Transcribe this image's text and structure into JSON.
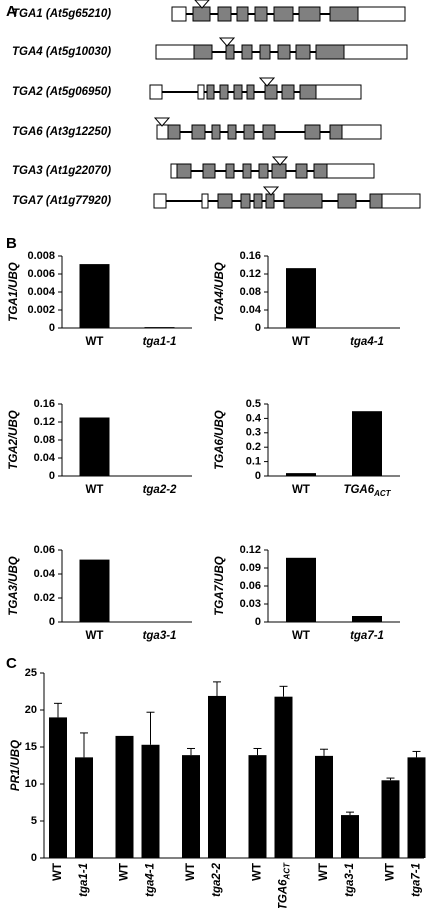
{
  "panel_labels": [
    "A",
    "B",
    "C"
  ],
  "gene_models": [
    {
      "label": "TGA1 (At5g65210)"
    },
    {
      "label": "TGA4 (At5g10030)"
    },
    {
      "label": "TGA2 (At5g06950)"
    },
    {
      "label": "TGA6 (At3g12250)"
    },
    {
      "label": "TGA3 (At1g22070)"
    },
    {
      "label": "TGA7 (At1g77920)"
    }
  ],
  "chart_data": [
    {
      "type": "bar",
      "y_label": "TGA1/UBQ",
      "categories": [
        "WT",
        "tga1-1"
      ],
      "values": [
        0.0071,
        0.0001
      ],
      "color": "#000000",
      "ylim": [
        0,
        0.008
      ],
      "yticks": [
        0,
        0.002,
        0.004,
        0.006,
        0.008
      ]
    },
    {
      "type": "bar",
      "y_label": "TGA4/UBQ",
      "categories": [
        "WT",
        "tga4-1"
      ],
      "values": [
        0.133,
        0
      ],
      "color": "#000000",
      "ylim": [
        0,
        0.16
      ],
      "yticks": [
        0,
        0.04,
        0.08,
        0.12,
        0.16
      ]
    },
    {
      "type": "bar",
      "y_label": "TGA2/UBQ",
      "categories": [
        "WT",
        "tga2-2"
      ],
      "values": [
        0.13,
        0
      ],
      "color": "#000000",
      "ylim": [
        0,
        0.16
      ],
      "yticks": [
        0,
        0.04,
        0.08,
        0.12,
        0.16
      ]
    },
    {
      "type": "bar",
      "y_label": "TGA6/UBQ",
      "categories": [
        "WT",
        "TGA6ACT"
      ],
      "values": [
        0.02,
        0.45
      ],
      "color": "#000000",
      "ylim": [
        0,
        0.5
      ],
      "yticks": [
        0,
        0.1,
        0.2,
        0.3,
        0.4,
        0.5
      ]
    },
    {
      "type": "bar",
      "y_label": "TGA3/UBQ",
      "categories": [
        "WT",
        "tga3-1"
      ],
      "values": [
        0.052,
        0
      ],
      "color": "#000000",
      "ylim": [
        0,
        0.06
      ],
      "yticks": [
        0,
        0.02,
        0.04,
        0.06
      ]
    },
    {
      "type": "bar",
      "y_label": "TGA7/UBQ",
      "categories": [
        "WT",
        "tga7-1"
      ],
      "values": [
        0.107,
        0.01
      ],
      "color": "#000000",
      "ylim": [
        0,
        0.12
      ],
      "yticks": [
        0,
        0.03,
        0.06,
        0.09,
        0.12
      ]
    },
    {
      "type": "bar",
      "y_label": "PR1/UBQ",
      "categories": [
        "WT",
        "tga1-1",
        "WT",
        "tga4-1",
        "WT",
        "tga2-2",
        "WT",
        "TGA6ACT",
        "WT",
        "tga3-1",
        "WT",
        "tga7-1"
      ],
      "values": [
        19,
        13.6,
        16.5,
        15.3,
        13.9,
        21.9,
        13.9,
        21.8,
        13.8,
        5.8,
        10.5,
        13.6
      ],
      "errors": [
        1.9,
        3.3,
        null,
        4.4,
        0.9,
        1.9,
        0.9,
        1.4,
        0.9,
        0.4,
        0.3,
        0.8
      ],
      "color": "#000000",
      "ylim": [
        0,
        25
      ],
      "yticks": [
        0,
        5,
        10,
        15,
        20,
        25
      ]
    }
  ]
}
